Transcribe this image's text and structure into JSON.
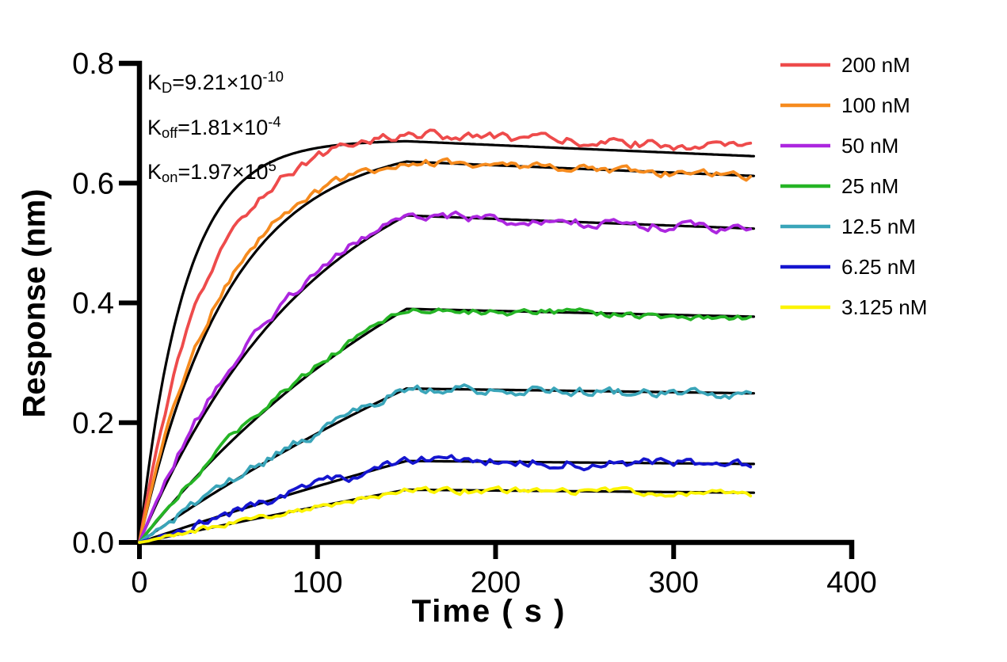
{
  "chart_data": {
    "type": "line",
    "title": "",
    "xlabel": "Time ( s )",
    "ylabel": "Response (nm)",
    "xlim": [
      0,
      400
    ],
    "ylim": [
      0,
      0.8
    ],
    "xticks": [
      "0",
      "100",
      "200",
      "300",
      "400"
    ],
    "xtick_values": [
      0,
      100,
      200,
      300,
      400
    ],
    "yticks": [
      "0.0",
      "0.2",
      "0.4",
      "0.6",
      "0.8"
    ],
    "ytick_values": [
      0,
      0.2,
      0.4,
      0.6,
      0.8
    ],
    "grid": false,
    "legend_position": "right",
    "association_end_s": 150,
    "trace_end_s": 345,
    "kinetics": [
      {
        "base": "K",
        "sub": "D",
        "mid": "=9.21×10",
        "sup": "-10"
      },
      {
        "base": "K",
        "sub": "off",
        "mid": "=1.81×10",
        "sup": "-4"
      },
      {
        "base": "K",
        "sub": "on",
        "mid": "=1.97×10",
        "sup": "5"
      }
    ],
    "series": [
      {
        "label": "200 nM",
        "color": "#EE4B4B",
        "response_at_150s": 0.682,
        "response_at_345s": 0.658,
        "kobs_data": 0.026,
        "fit_r150": 0.67,
        "fit_end": 0.645,
        "kobs_fit": 0.0394,
        "noise": 0.0065
      },
      {
        "label": "100 nM",
        "color": "#F68B1E",
        "response_at_150s": 0.636,
        "response_at_345s": 0.611,
        "kobs_data": 0.0215,
        "fit_r150": 0.636,
        "fit_end": 0.612,
        "kobs_fit": 0.0197,
        "noise": 0.0055
      },
      {
        "label": "50 nM",
        "color": "#AC26DF",
        "response_at_150s": 0.546,
        "response_at_345s": 0.522,
        "kobs_data": 0.0112,
        "fit_r150": 0.546,
        "fit_end": 0.524,
        "kobs_fit": 0.01,
        "noise": 0.0065
      },
      {
        "label": "25 nM",
        "color": "#25B425",
        "response_at_150s": 0.39,
        "response_at_345s": 0.375,
        "kobs_data": 0.006,
        "fit_r150": 0.39,
        "fit_end": 0.377,
        "kobs_fit": 0.0051,
        "noise": 0.005
      },
      {
        "label": "12.5 nM",
        "color": "#3AA5B9",
        "response_at_150s": 0.257,
        "response_at_345s": 0.247,
        "kobs_data": 0.0031,
        "fit_r150": 0.257,
        "fit_end": 0.249,
        "kobs_fit": 0.00264,
        "noise": 0.0065
      },
      {
        "label": "6.25 nM",
        "color": "#1515CF",
        "response_at_150s": 0.136,
        "response_at_345s": 0.129,
        "kobs_data": 0.0016,
        "fit_r150": 0.136,
        "fit_end": 0.131,
        "kobs_fit": 0.00141,
        "noise": 0.007
      },
      {
        "label": "3.125 nM",
        "color": "#FCF400",
        "response_at_150s": 0.088,
        "response_at_345s": 0.081,
        "kobs_data": 0.0008,
        "fit_r150": 0.088,
        "fit_end": 0.083,
        "kobs_fit": 0.0008,
        "noise": 0.0045
      }
    ]
  }
}
